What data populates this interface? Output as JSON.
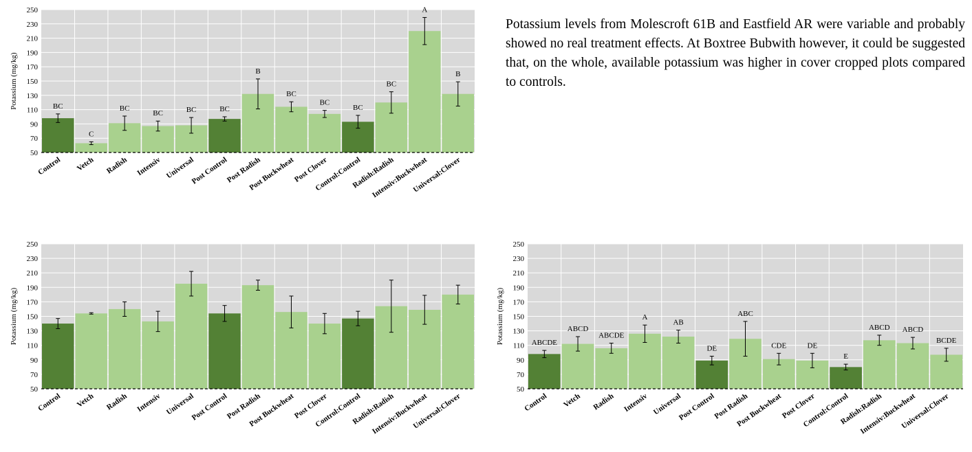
{
  "chart_data": [
    {
      "type": "bar",
      "ylabel": "Potassium (mg/kg)",
      "categories": [
        "Control",
        "Vetch",
        "Radish",
        "Intensiv",
        "Universal",
        "Post Control",
        "Post Radish",
        "Post Buckwheat",
        "Post Clover",
        "Control:Control",
        "Radish:Radish",
        "Intensiv:Buckwheat",
        "Universal:Clover"
      ],
      "values": [
        98,
        63,
        91,
        87,
        88,
        97,
        132,
        114,
        104,
        93,
        120,
        220,
        132
      ],
      "errors": [
        6,
        2,
        10,
        7,
        11,
        3,
        21,
        7,
        5,
        9,
        15,
        19,
        17
      ],
      "letters": [
        "BC",
        "C",
        "BC",
        "BC",
        "BC",
        "BC",
        "B",
        "BC",
        "BC",
        "BC",
        "BC",
        "A",
        "B"
      ],
      "colors": [
        "#538135",
        "#a9d18e",
        "#a9d18e",
        "#a9d18e",
        "#a9d18e",
        "#538135",
        "#a9d18e",
        "#a9d18e",
        "#a9d18e",
        "#538135",
        "#a9d18e",
        "#a9d18e",
        "#a9d18e"
      ],
      "ylim": [
        50,
        250
      ],
      "yticks": [
        50,
        70,
        90,
        110,
        130,
        150,
        170,
        190,
        210,
        230,
        250
      ],
      "grid": true
    },
    {
      "type": "bar",
      "ylabel": "Potassium (mg/kg)",
      "categories": [
        "Control",
        "Vetch",
        "Radish",
        "Intensiv",
        "Universal",
        "Post Control",
        "Post Radish",
        "Post Buckwheat",
        "Post Clover",
        "Control:Control",
        "Radish:Radish",
        "Intensiv:Buckwheat",
        "Universal:Clover"
      ],
      "values": [
        140,
        154,
        160,
        143,
        195,
        154,
        193,
        156,
        140,
        147,
        164,
        159,
        180
      ],
      "errors": [
        7,
        1,
        10,
        14,
        17,
        11,
        7,
        22,
        14,
        10,
        36,
        20,
        13
      ],
      "colors": [
        "#538135",
        "#a9d18e",
        "#a9d18e",
        "#a9d18e",
        "#a9d18e",
        "#538135",
        "#a9d18e",
        "#a9d18e",
        "#a9d18e",
        "#538135",
        "#a9d18e",
        "#a9d18e",
        "#a9d18e"
      ],
      "ylim": [
        50,
        250
      ],
      "yticks": [
        50,
        70,
        90,
        110,
        130,
        150,
        170,
        190,
        210,
        230,
        250
      ],
      "grid": true
    },
    {
      "type": "bar",
      "ylabel": "Potassium (mg/kg)",
      "categories": [
        "Control",
        "Vetch",
        "Radish",
        "Intensiv",
        "Universal",
        "Post Control",
        "Post Radish",
        "Post Buckwheat",
        "Post Clover",
        "Control:Control",
        "Radish:Radish",
        "Intensiv:Buckwheat",
        "Universal:Clover"
      ],
      "values": [
        98,
        112,
        106,
        126,
        122,
        89,
        119,
        91,
        89,
        80,
        117,
        113,
        97
      ],
      "errors": [
        5,
        10,
        7,
        12,
        9,
        6,
        24,
        8,
        10,
        4,
        7,
        8,
        9
      ],
      "letters": [
        "ABCDE",
        "ABCD",
        "ABCDE",
        "A",
        "AB",
        "DE",
        "ABC",
        "CDE",
        "DE",
        "E",
        "ABCD",
        "ABCD",
        "BCDE"
      ],
      "colors": [
        "#538135",
        "#a9d18e",
        "#a9d18e",
        "#a9d18e",
        "#a9d18e",
        "#538135",
        "#a9d18e",
        "#a9d18e",
        "#a9d18e",
        "#538135",
        "#a9d18e",
        "#a9d18e",
        "#a9d18e"
      ],
      "ylim": [
        50,
        250
      ],
      "yticks": [
        50,
        70,
        90,
        110,
        130,
        150,
        170,
        190,
        210,
        230,
        250
      ],
      "grid": true
    }
  ],
  "text": "Potassium levels from Molescroft 61B and Eastfield AR were variable and probably showed no real treatment effects. At Boxtree Bubwith however, it could be suggested that, on the whole, available potassium was higher in cover cropped plots compared to controls."
}
